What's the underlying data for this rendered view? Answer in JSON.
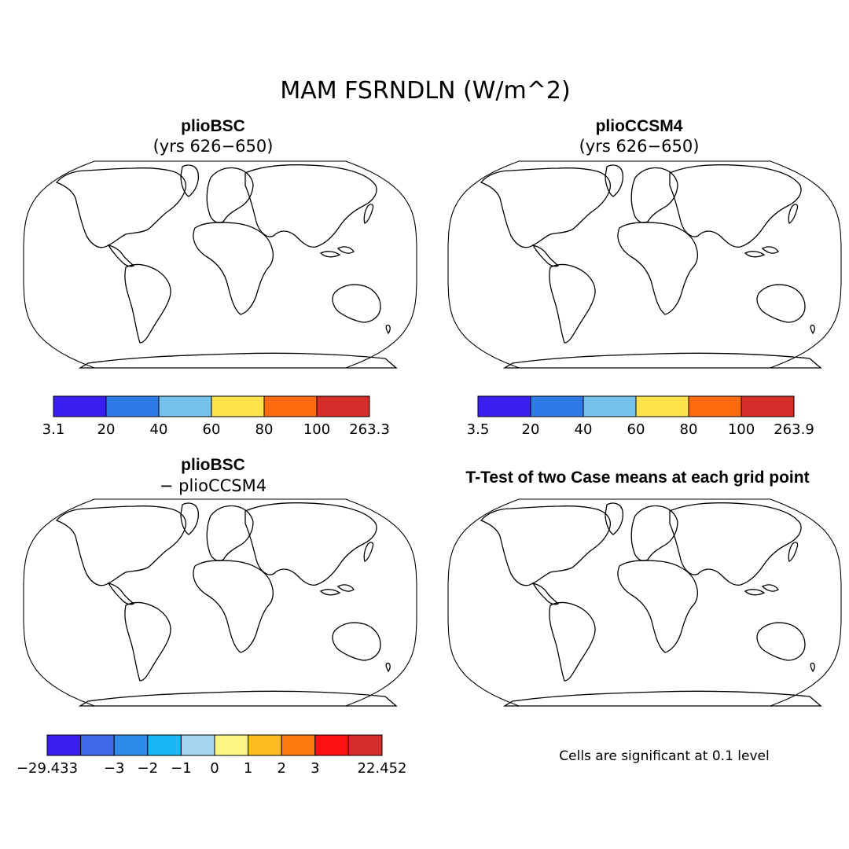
{
  "figure": {
    "title": "MAM FSRNDLN (W/m^2)",
    "panels": [
      {
        "id": "bsc",
        "title": "plioBSC",
        "subtitle": "(yrs 626−650)",
        "colorbar": {
          "labels": [
            "3.1",
            "20",
            "40",
            "60",
            "80",
            "100",
            "263.3"
          ],
          "colors": [
            "#3a1ef0",
            "#2e7be8",
            "#74c1ec",
            "#fee44a",
            "#fe6a10",
            "#d62c2a"
          ]
        }
      },
      {
        "id": "ccsm",
        "title": "plioCCSM4",
        "subtitle": "(yrs 626−650)",
        "colorbar": {
          "labels": [
            "3.5",
            "20",
            "40",
            "60",
            "80",
            "100",
            "263.9"
          ],
          "colors": [
            "#3a1ef0",
            "#2e7be8",
            "#74c1ec",
            "#fee44a",
            "#fe6a10",
            "#d62c2a"
          ]
        }
      },
      {
        "id": "diff",
        "title": "plioBSC",
        "subtitle": "− plioCCSM4",
        "colorbar": {
          "labels": [
            "−29.433",
            "−3",
            "−2",
            "−1",
            "0",
            "1",
            "2",
            "3",
            "22.452"
          ],
          "label_slots": [
            0,
            2,
            3,
            4,
            5,
            6,
            7,
            8,
            10
          ],
          "colors": [
            "#3a1ef0",
            "#3f68e6",
            "#2e8bea",
            "#18b8f4",
            "#a6d4f0",
            "#fef585",
            "#fdbd22",
            "#fd7a0e",
            "#fc1010",
            "#d62c2a"
          ]
        }
      },
      {
        "id": "ttest",
        "title": "T-Test of two Case means at each grid point",
        "note": "Cells are significant at 0.1 level",
        "marker_color": "#ee0000"
      }
    ]
  }
}
